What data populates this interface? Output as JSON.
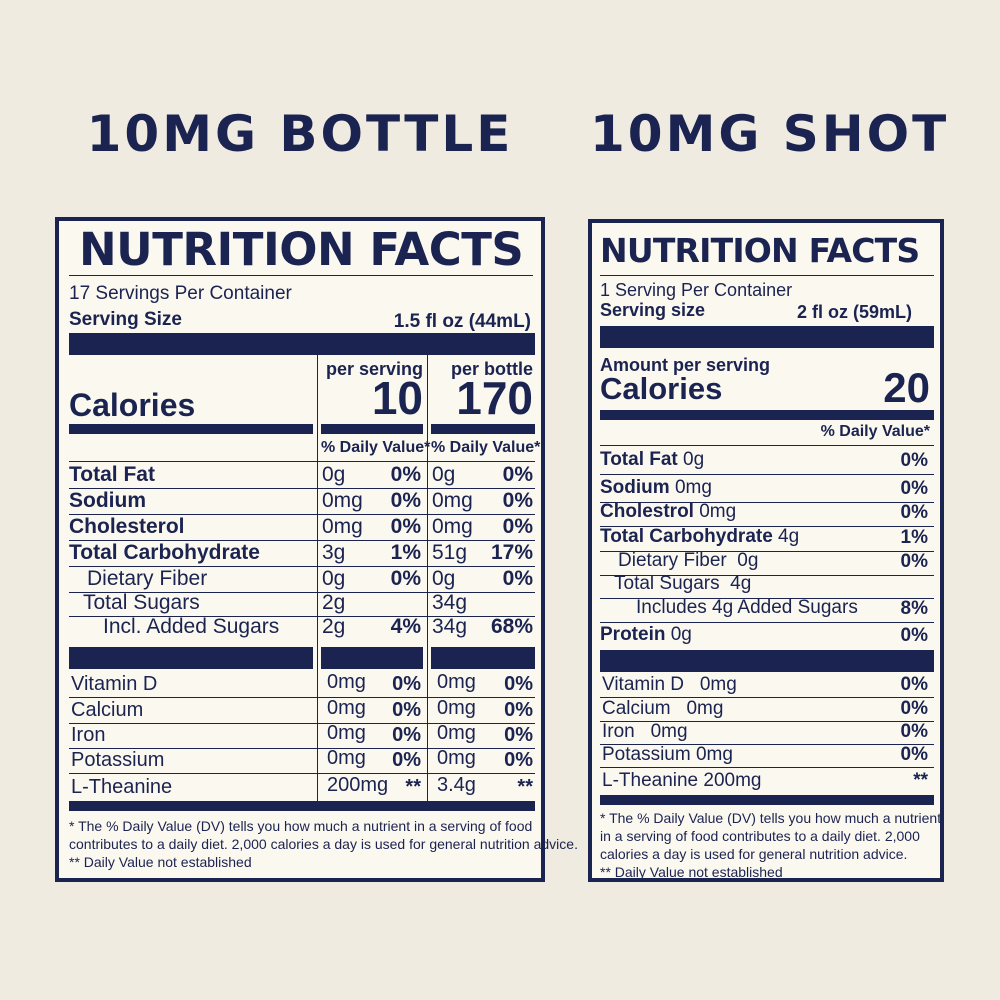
{
  "headings": {
    "left": "10MG BOTTLE",
    "right": "10MG SHOT"
  },
  "bottle": {
    "title": "NUTRITION FACTS",
    "servings": "17 Servings Per Container",
    "serving_size_label": "Serving Size",
    "serving_size_value": "1.5 fl oz (44mL)",
    "calories_label": "Calories",
    "col1_header": "per serving",
    "col2_header": "per bottle",
    "col1_calories": "10",
    "col2_calories": "170",
    "dv_header": "% Daily Value*",
    "nutrients": [
      {
        "label": "Total Fat",
        "a": "0g",
        "ap": "0%",
        "b": "0g",
        "bp": "0%"
      },
      {
        "label": "Sodium",
        "a": "0mg",
        "ap": "0%",
        "b": "0mg",
        "bp": "0%"
      },
      {
        "label": "Cholesterol",
        "a": "0mg",
        "ap": "0%",
        "b": "0mg",
        "bp": "0%"
      },
      {
        "label": "Total Carbohydrate",
        "a": "3g",
        "ap": "1%",
        "b": "51g",
        "bp": "17%"
      },
      {
        "label": "Dietary Fiber",
        "a": "0g",
        "ap": "0%",
        "b": "0g",
        "bp": "0%"
      },
      {
        "label": "Total Sugars",
        "a": "2g",
        "ap": "",
        "b": "34g",
        "bp": ""
      },
      {
        "label": "Incl. Added Sugars",
        "a": "2g",
        "ap": "4%",
        "b": "34g",
        "bp": "68%"
      }
    ],
    "vitamins": [
      {
        "label": "Vitamin D",
        "a": "0mg",
        "ap": "0%",
        "b": "0mg",
        "bp": "0%"
      },
      {
        "label": "Calcium",
        "a": "0mg",
        "ap": "0%",
        "b": "0mg",
        "bp": "0%"
      },
      {
        "label": "Iron",
        "a": "0mg",
        "ap": "0%",
        "b": "0mg",
        "bp": "0%"
      },
      {
        "label": "Potassium",
        "a": "0mg",
        "ap": "0%",
        "b": "0mg",
        "bp": "0%"
      },
      {
        "label": "L-Theanine",
        "a": "200mg",
        "ap": "**",
        "b": "3.4g",
        "bp": "**"
      }
    ],
    "footnote1": "* The % Daily Value (DV) tells you how much a nutrient in a serving of food",
    "footnote2": "contributes to a daily diet. 2,000 calories a day is used for general nutrition advice.",
    "footnote3": "** Daily Value not established"
  },
  "shot": {
    "title": "NUTRITION FACTS",
    "servings": "1 Serving Per Container",
    "serving_size_label": "Serving size",
    "serving_size_value": "2 fl oz (59mL)",
    "amount_label": "Amount per serving",
    "calories_label": "Calories",
    "calories_value": "20",
    "dv_header": "% Daily Value*",
    "nutrients": [
      {
        "label": "Total Fat",
        "amount": " 0g",
        "pct": "0%"
      },
      {
        "label": "Sodium",
        "amount": " 0mg",
        "pct": "0%"
      },
      {
        "label": "Cholestrol",
        "amount": " 0mg",
        "pct": "0%"
      },
      {
        "label": "Total Carbohydrate",
        "amount": " 4g",
        "pct": "1%"
      },
      {
        "label": "",
        "amount": "Dietary Fiber  0g",
        "pct": "0%"
      },
      {
        "label": "",
        "amount": "Total Sugars  4g",
        "pct": ""
      },
      {
        "label": "",
        "amount": "Includes 4g Added Sugars",
        "pct": "8%"
      },
      {
        "label": "Protein",
        "amount": " 0g",
        "pct": "0%"
      }
    ],
    "vitamins": [
      {
        "label": "Vitamin D   0mg",
        "pct": "0%"
      },
      {
        "label": "Calcium   0mg",
        "pct": "0%"
      },
      {
        "label": "Iron   0mg",
        "pct": "0%"
      },
      {
        "label": "Potassium 0mg",
        "pct": "0%"
      },
      {
        "label": "L-Theanine 200mg",
        "pct": "**"
      }
    ],
    "footnote1": "* The % Daily Value (DV) tells you how much a nutrient",
    "footnote2": "in a serving of food contributes to a daily diet. 2,000",
    "footnote3": "calories a day is used for general nutrition advice.",
    "footnote4": "** Daily Value not established"
  }
}
